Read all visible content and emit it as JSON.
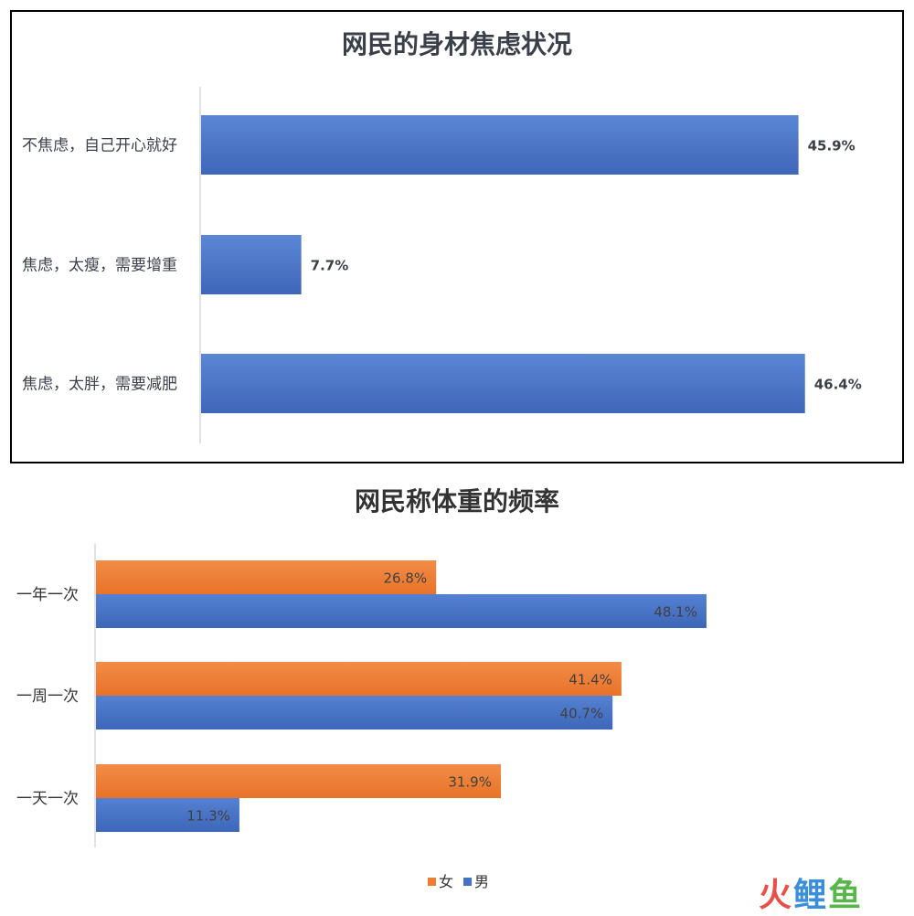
{
  "chart_data": [
    {
      "type": "bar",
      "orientation": "horizontal",
      "title": "网民的身材焦虑状况",
      "categories": [
        "不焦虑，自己开心就好",
        "焦虑，太瘦，需要增重",
        "焦虑，太胖，需要减肥"
      ],
      "values": [
        45.9,
        7.7,
        46.4
      ],
      "value_labels": [
        "45.9%",
        "7.7%",
        "46.4%"
      ],
      "xlim": [
        0,
        50
      ],
      "grid": false,
      "colors": {
        "bar": "#4a73c9",
        "bar_light": "#5b86d6",
        "bar_dark": "#3f66b8",
        "frame": "#000000"
      }
    },
    {
      "type": "bar",
      "orientation": "horizontal",
      "title": "网民称体重的频率",
      "categories": [
        "一年一次",
        "一周一次",
        "一天一次"
      ],
      "series": [
        {
          "name": "女",
          "values": [
            26.8,
            41.4,
            31.9
          ],
          "labels": [
            "26.8%",
            "41.4%",
            "31.9%"
          ],
          "color": "#ed7d31"
        },
        {
          "name": "男",
          "values": [
            48.1,
            40.7,
            11.3
          ],
          "labels": [
            "48.1%",
            "40.7%",
            "11.3%"
          ],
          "color": "#4472c4"
        }
      ],
      "xlim": [
        0,
        62
      ],
      "grid": false,
      "legend_position": "bottom"
    }
  ],
  "logo": {
    "c1": "火",
    "c2": "鲤",
    "c3": "鱼"
  }
}
